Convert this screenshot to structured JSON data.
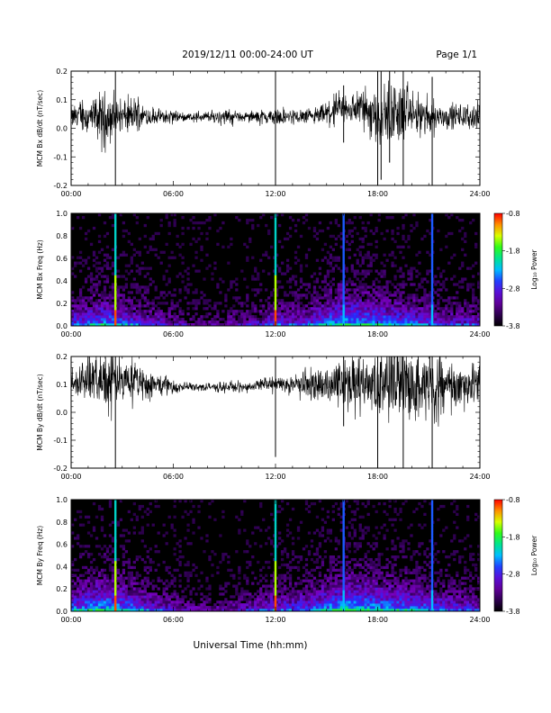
{
  "header": {
    "date_range": "2019/12/11  00:00-24:00 UT",
    "page": "Page 1/1"
  },
  "xaxis_title": "Universal Time (hh:mm)",
  "chart_data": [
    {
      "type": "line",
      "ylabel": "MCM Bx dB/dt (nT/sec)",
      "xlim": [
        0,
        24
      ],
      "ylim": [
        -0.2,
        0.2
      ],
      "x_ticks": [
        "00:00",
        "06:00",
        "12:00",
        "18:00",
        "24:00"
      ],
      "y_ticks": [
        "-0.2",
        "-0.1",
        "0.0",
        "0.1",
        "0.2"
      ],
      "y_tick_values": [
        -0.2,
        -0.1,
        0.0,
        0.1,
        0.2
      ],
      "series_color": "#000000",
      "envelope": {
        "x": [
          0,
          0.5,
          1,
          1.5,
          2,
          2.5,
          3,
          3.5,
          4,
          4.5,
          5,
          5.5,
          6,
          6.5,
          7,
          7.5,
          8,
          8.5,
          9,
          9.5,
          10,
          10.5,
          11,
          11.5,
          12,
          12.5,
          13,
          13.5,
          14,
          14.5,
          15,
          15.5,
          16,
          16.5,
          17,
          17.5,
          18,
          18.5,
          19,
          19.5,
          20,
          20.5,
          21,
          21.5,
          22,
          22.5,
          23,
          23.5,
          24
        ],
        "center": [
          0.04,
          0.05,
          0.04,
          0.04,
          0.03,
          0.04,
          0.04,
          0.04,
          0.05,
          0.04,
          0.04,
          0.04,
          0.04,
          0.04,
          0.04,
          0.04,
          0.04,
          0.04,
          0.04,
          0.04,
          0.04,
          0.04,
          0.04,
          0.04,
          0.04,
          0.04,
          0.04,
          0.04,
          0.04,
          0.04,
          0.05,
          0.06,
          0.07,
          0.07,
          0.07,
          0.06,
          0.05,
          0.05,
          0.05,
          0.05,
          0.05,
          0.04,
          0.04,
          0.04,
          0.04,
          0.04,
          0.04,
          0.04,
          0.04
        ],
        "amplitude": [
          0.04,
          0.06,
          0.06,
          0.08,
          0.1,
          0.08,
          0.07,
          0.07,
          0.06,
          0.04,
          0.03,
          0.03,
          0.03,
          0.02,
          0.02,
          0.02,
          0.02,
          0.03,
          0.03,
          0.03,
          0.02,
          0.02,
          0.03,
          0.03,
          0.03,
          0.03,
          0.03,
          0.03,
          0.03,
          0.04,
          0.05,
          0.06,
          0.07,
          0.07,
          0.08,
          0.1,
          0.12,
          0.12,
          0.13,
          0.12,
          0.1,
          0.08,
          0.07,
          0.06,
          0.05,
          0.05,
          0.05,
          0.05,
          0.05
        ]
      },
      "spikes": [
        {
          "x": 2.6,
          "min": -0.2,
          "max": 0.2
        },
        {
          "x": 12.0,
          "min": -0.2,
          "max": 0.2
        },
        {
          "x": 16.0,
          "min": -0.05,
          "max": 0.15
        },
        {
          "x": 18.0,
          "min": -0.2,
          "max": 0.2
        },
        {
          "x": 18.2,
          "min": -0.18,
          "max": 0.2
        },
        {
          "x": 18.7,
          "min": -0.12,
          "max": 0.2
        },
        {
          "x": 19.5,
          "min": -0.2,
          "max": 0.2
        },
        {
          "x": 21.2,
          "min": -0.2,
          "max": 0.18
        }
      ]
    },
    {
      "type": "heatmap",
      "ylabel": "MCM Bx Freq (Hz)",
      "xlim": [
        0,
        24
      ],
      "ylim": [
        0,
        1.0
      ],
      "x_ticks": [
        "00:00",
        "06:00",
        "12:00",
        "18:00",
        "24:00"
      ],
      "y_ticks": [
        "0.0",
        "0.2",
        "0.4",
        "0.6",
        "0.8",
        "1.0"
      ],
      "y_tick_values": [
        0.0,
        0.2,
        0.4,
        0.6,
        0.8,
        1.0
      ],
      "colorbar": {
        "label": "Log₁₀ Power",
        "min": -3.8,
        "max": -0.8,
        "ticks": [
          "-0.8",
          "-1.8",
          "-2.8",
          "-3.8"
        ],
        "tick_values": [
          -0.8,
          -1.8,
          -2.8,
          -3.8
        ]
      },
      "activity": {
        "x": [
          0,
          1,
          2,
          3,
          4,
          5,
          6,
          7,
          8,
          9,
          10,
          11,
          12,
          13,
          14,
          15,
          16,
          17,
          18,
          19,
          20,
          21,
          22,
          23,
          24
        ],
        "level": [
          0.6,
          0.7,
          0.8,
          0.7,
          0.6,
          0.5,
          0.4,
          0.3,
          0.3,
          0.35,
          0.4,
          0.45,
          0.55,
          0.55,
          0.6,
          0.75,
          0.9,
          0.85,
          0.8,
          0.75,
          0.7,
          0.6,
          0.55,
          0.5,
          0.5
        ]
      },
      "spikes": [
        2.6,
        12.0,
        16.0,
        21.2
      ]
    },
    {
      "type": "line",
      "ylabel": "MCM By dB/dt (nT/sec)",
      "xlim": [
        0,
        24
      ],
      "ylim": [
        -0.2,
        0.2
      ],
      "x_ticks": [
        "00:00",
        "06:00",
        "12:00",
        "18:00",
        "24:00"
      ],
      "y_ticks": [
        "-0.2",
        "-0.1",
        "0.0",
        "0.1",
        "0.2"
      ],
      "y_tick_values": [
        -0.2,
        -0.1,
        0.0,
        0.1,
        0.2
      ],
      "series_color": "#000000",
      "envelope": {
        "x": [
          0,
          0.5,
          1,
          1.5,
          2,
          2.5,
          3,
          3.5,
          4,
          4.5,
          5,
          5.5,
          6,
          6.5,
          7,
          7.5,
          8,
          8.5,
          9,
          9.5,
          10,
          10.5,
          11,
          11.5,
          12,
          12.5,
          13,
          13.5,
          14,
          14.5,
          15,
          15.5,
          16,
          16.5,
          17,
          17.5,
          18,
          18.5,
          19,
          19.5,
          20,
          20.5,
          21,
          21.5,
          22,
          22.5,
          23,
          23.5,
          24
        ],
        "center": [
          0.11,
          0.12,
          0.12,
          0.12,
          0.12,
          0.11,
          0.11,
          0.11,
          0.11,
          0.1,
          0.1,
          0.1,
          0.09,
          0.09,
          0.09,
          0.09,
          0.09,
          0.09,
          0.09,
          0.09,
          0.09,
          0.09,
          0.1,
          0.1,
          0.1,
          0.1,
          0.1,
          0.1,
          0.1,
          0.1,
          0.1,
          0.1,
          0.1,
          0.1,
          0.1,
          0.1,
          0.1,
          0.1,
          0.1,
          0.1,
          0.1,
          0.1,
          0.1,
          0.1,
          0.1,
          0.1,
          0.1,
          0.1,
          0.1
        ],
        "amplitude": [
          0.07,
          0.08,
          0.09,
          0.1,
          0.12,
          0.12,
          0.1,
          0.09,
          0.08,
          0.07,
          0.05,
          0.04,
          0.03,
          0.02,
          0.02,
          0.02,
          0.02,
          0.02,
          0.02,
          0.02,
          0.02,
          0.02,
          0.02,
          0.03,
          0.03,
          0.03,
          0.04,
          0.05,
          0.06,
          0.07,
          0.08,
          0.09,
          0.1,
          0.11,
          0.12,
          0.13,
          0.14,
          0.15,
          0.16,
          0.16,
          0.15,
          0.14,
          0.13,
          0.12,
          0.11,
          0.1,
          0.09,
          0.09,
          0.08
        ]
      },
      "spikes": [
        {
          "x": 2.6,
          "min": -0.2,
          "max": 0.2
        },
        {
          "x": 12.0,
          "min": -0.16,
          "max": 0.2
        },
        {
          "x": 16.0,
          "min": -0.05,
          "max": 0.2
        },
        {
          "x": 18.0,
          "min": -0.2,
          "max": 0.2
        },
        {
          "x": 19.5,
          "min": -0.2,
          "max": 0.2
        },
        {
          "x": 21.2,
          "min": -0.2,
          "max": 0.2
        }
      ]
    },
    {
      "type": "heatmap",
      "ylabel": "MCM By Freq (Hz)",
      "xlim": [
        0,
        24
      ],
      "ylim": [
        0,
        1.0
      ],
      "x_ticks": [
        "00:00",
        "06:00",
        "12:00",
        "18:00",
        "24:00"
      ],
      "y_ticks": [
        "0.0",
        "0.2",
        "0.4",
        "0.6",
        "0.8",
        "1.0"
      ],
      "y_tick_values": [
        0.0,
        0.2,
        0.4,
        0.6,
        0.8,
        1.0
      ],
      "colorbar": {
        "label": "Log₁₀ Power",
        "min": -3.8,
        "max": -0.8,
        "ticks": [
          "-0.8",
          "-1.8",
          "-2.8",
          "-3.8"
        ],
        "tick_values": [
          -0.8,
          -1.8,
          -2.8,
          -3.8
        ]
      },
      "activity": {
        "x": [
          0,
          1,
          2,
          3,
          4,
          5,
          6,
          7,
          8,
          9,
          10,
          11,
          12,
          13,
          14,
          15,
          16,
          17,
          18,
          19,
          20,
          21,
          22,
          23,
          24
        ],
        "level": [
          0.7,
          0.8,
          0.9,
          0.8,
          0.7,
          0.55,
          0.45,
          0.35,
          0.3,
          0.35,
          0.4,
          0.5,
          0.6,
          0.6,
          0.65,
          0.8,
          0.95,
          0.9,
          0.85,
          0.8,
          0.75,
          0.7,
          0.6,
          0.55,
          0.55
        ]
      },
      "spikes": [
        2.6,
        12.0,
        16.0,
        21.2
      ]
    }
  ]
}
